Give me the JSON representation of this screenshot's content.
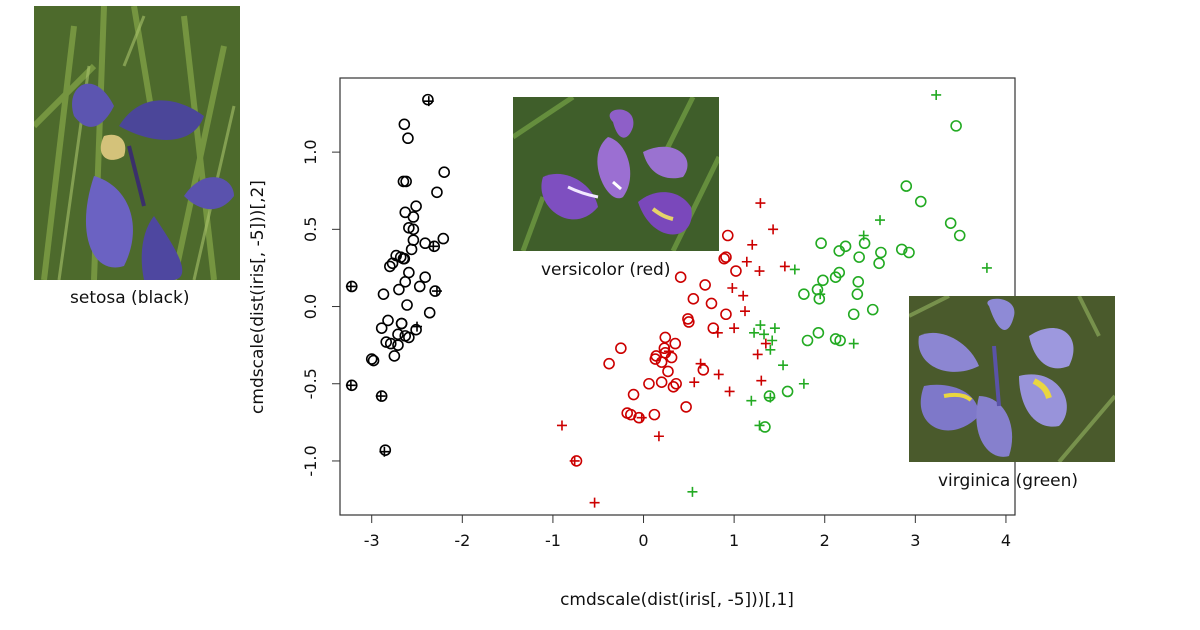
{
  "chart_data": {
    "type": "scatter",
    "title": "",
    "xlabel": "cmdscale(dist(iris[, -5]))[,1]",
    "ylabel": "cmdscale(dist(iris[, -5]))[,2]",
    "xlim": [
      -3.35,
      4.1
    ],
    "ylim": [
      -1.35,
      1.48
    ],
    "xticks": [
      -3,
      -2,
      -1,
      0,
      1,
      2,
      3,
      4
    ],
    "yticks": [
      -1.0,
      -0.5,
      0.0,
      0.5,
      1.0
    ],
    "ytick_labels": [
      "-1.0",
      "-0.5",
      "0.0",
      "0.5",
      "1.0"
    ],
    "series": [
      {
        "name": "setosa",
        "color": "#000000",
        "circles": [
          [
            -2.68,
            0.32
          ],
          [
            -2.71,
            -0.18
          ],
          [
            -2.89,
            -0.14
          ],
          [
            -2.75,
            -0.32
          ],
          [
            -2.73,
            0.33
          ],
          [
            -2.28,
            0.74
          ],
          [
            -2.82,
            -0.09
          ],
          [
            -2.63,
            0.16
          ],
          [
            -2.89,
            -0.58
          ],
          [
            -2.67,
            -0.11
          ],
          [
            -2.51,
            0.65
          ],
          [
            -2.61,
            0.01
          ],
          [
            -2.79,
            -0.24
          ],
          [
            -3.22,
            -0.51
          ],
          [
            -2.64,
            1.18
          ],
          [
            -2.38,
            1.34
          ],
          [
            -2.62,
            0.81
          ],
          [
            -2.65,
            0.31
          ],
          [
            -2.2,
            0.87
          ],
          [
            -2.59,
            0.51
          ],
          [
            -2.31,
            0.39
          ],
          [
            -2.54,
            0.43
          ],
          [
            -3.22,
            0.13
          ],
          [
            -2.3,
            0.1
          ],
          [
            -2.36,
            -0.04
          ],
          [
            -2.51,
            -0.15
          ],
          [
            -2.47,
            0.13
          ],
          [
            -2.56,
            0.37
          ],
          [
            -2.64,
            0.31
          ],
          [
            -2.63,
            -0.19
          ],
          [
            -2.59,
            -0.2
          ],
          [
            -2.41,
            0.41
          ],
          [
            -2.65,
            0.81
          ],
          [
            -2.6,
            1.09
          ],
          [
            -2.67,
            -0.11
          ],
          [
            -2.87,
            0.08
          ],
          [
            -2.63,
            0.61
          ],
          [
            -2.8,
            0.26
          ],
          [
            -2.98,
            -0.35
          ],
          [
            -2.59,
            0.22
          ],
          [
            -2.77,
            0.28
          ],
          [
            -2.85,
            -0.93
          ],
          [
            -3.0,
            -0.34
          ],
          [
            -2.41,
            0.19
          ],
          [
            -2.21,
            0.44
          ],
          [
            -2.71,
            -0.25
          ],
          [
            -2.54,
            0.5
          ],
          [
            -2.84,
            -0.23
          ],
          [
            -2.54,
            0.58
          ],
          [
            -2.7,
            0.11
          ]
        ],
        "crosses": [
          [
            -2.37,
            1.33
          ],
          [
            -3.23,
            0.13
          ],
          [
            -3.23,
            -0.51
          ],
          [
            -2.9,
            -0.58
          ],
          [
            -2.86,
            -0.94
          ],
          [
            -2.28,
            0.1
          ],
          [
            -2.5,
            -0.13
          ],
          [
            -2.32,
            0.39
          ]
        ]
      },
      {
        "name": "versicolor",
        "color": "#cc0000",
        "circles": [
          [
            0.93,
            0.46
          ],
          [
            0.89,
            0.31
          ],
          [
            0.91,
            -0.05
          ],
          [
            0.49,
            -0.08
          ],
          [
            0.77,
            -0.14
          ],
          [
            0.75,
            0.02
          ],
          [
            0.35,
            -0.24
          ],
          [
            0.23,
            -0.27
          ],
          [
            0.36,
            -0.5
          ],
          [
            0.31,
            -0.33
          ],
          [
            0.14,
            -0.32
          ],
          [
            0.06,
            -0.5
          ],
          [
            -0.11,
            -0.57
          ],
          [
            0.27,
            -0.42
          ],
          [
            -0.38,
            -0.37
          ],
          [
            -0.25,
            -0.27
          ],
          [
            0.41,
            0.19
          ],
          [
            1.02,
            0.23
          ],
          [
            0.68,
            0.14
          ],
          [
            0.55,
            0.05
          ],
          [
            -0.74,
            -1.0
          ],
          [
            0.33,
            -0.52
          ],
          [
            0.66,
            -0.41
          ],
          [
            0.24,
            -0.3
          ],
          [
            0.13,
            -0.34
          ],
          [
            0.2,
            -0.49
          ],
          [
            -0.14,
            -0.7
          ],
          [
            0.2,
            -0.36
          ],
          [
            0.47,
            -0.65
          ],
          [
            -0.05,
            -0.72
          ],
          [
            0.12,
            -0.7
          ],
          [
            0.91,
            0.32
          ],
          [
            -0.18,
            -0.69
          ],
          [
            0.5,
            -0.1
          ],
          [
            0.24,
            -0.2
          ]
        ],
        "crosses": [
          [
            1.29,
            0.67
          ],
          [
            1.2,
            0.4
          ],
          [
            1.43,
            0.5
          ],
          [
            1.28,
            0.23
          ],
          [
            1.56,
            0.26
          ],
          [
            1.14,
            0.29
          ],
          [
            0.98,
            0.12
          ],
          [
            1.1,
            0.07
          ],
          [
            1.12,
            -0.03
          ],
          [
            1.0,
            -0.14
          ],
          [
            0.82,
            -0.17
          ],
          [
            1.35,
            -0.24
          ],
          [
            1.26,
            -0.31
          ],
          [
            1.3,
            -0.48
          ],
          [
            0.63,
            -0.37
          ],
          [
            0.83,
            -0.44
          ],
          [
            0.95,
            -0.55
          ],
          [
            0.56,
            -0.49
          ],
          [
            0.28,
            -0.29
          ],
          [
            0.17,
            -0.84
          ],
          [
            -0.9,
            -0.77
          ],
          [
            -0.54,
            -1.27
          ],
          [
            -0.76,
            -1.0
          ],
          [
            -0.02,
            -0.72
          ]
        ]
      },
      {
        "name": "virginica",
        "color": "#22aa22",
        "circles": [
          [
            3.45,
            1.17
          ],
          [
            2.9,
            0.78
          ],
          [
            3.06,
            0.68
          ],
          [
            3.49,
            0.46
          ],
          [
            3.39,
            0.54
          ],
          [
            2.93,
            0.35
          ],
          [
            2.85,
            0.37
          ],
          [
            2.44,
            0.41
          ],
          [
            2.38,
            0.32
          ],
          [
            2.23,
            0.39
          ],
          [
            2.16,
            0.22
          ],
          [
            2.62,
            0.35
          ],
          [
            2.6,
            0.28
          ],
          [
            2.37,
            0.16
          ],
          [
            2.16,
            0.36
          ],
          [
            1.96,
            0.41
          ],
          [
            1.98,
            0.17
          ],
          [
            2.12,
            0.19
          ],
          [
            2.36,
            0.08
          ],
          [
            2.53,
            -0.02
          ],
          [
            2.32,
            -0.05
          ],
          [
            1.92,
            0.11
          ],
          [
            1.94,
            0.05
          ],
          [
            1.77,
            0.08
          ],
          [
            1.93,
            -0.17
          ],
          [
            2.17,
            -0.22
          ],
          [
            1.81,
            -0.22
          ],
          [
            1.59,
            -0.55
          ],
          [
            1.39,
            -0.58
          ],
          [
            1.34,
            -0.78
          ],
          [
            2.12,
            -0.21
          ]
        ],
        "crosses": [
          [
            3.23,
            1.37
          ],
          [
            3.79,
            0.25
          ],
          [
            2.61,
            0.56
          ],
          [
            2.43,
            0.46
          ],
          [
            1.67,
            0.24
          ],
          [
            1.95,
            0.08
          ],
          [
            1.29,
            -0.12
          ],
          [
            1.45,
            -0.14
          ],
          [
            1.33,
            -0.18
          ],
          [
            1.22,
            -0.17
          ],
          [
            1.4,
            -0.28
          ],
          [
            1.54,
            -0.38
          ],
          [
            1.77,
            -0.5
          ],
          [
            1.19,
            -0.61
          ],
          [
            1.28,
            -0.77
          ],
          [
            1.4,
            -0.59
          ],
          [
            0.54,
            -1.2
          ],
          [
            2.32,
            -0.24
          ],
          [
            1.42,
            -0.22
          ]
        ]
      }
    ]
  },
  "photos": [
    {
      "name": "setosa",
      "caption": "setosa (black)"
    },
    {
      "name": "versicolor",
      "caption": "versicolor (red)"
    },
    {
      "name": "virginica",
      "caption": "virginica (green)"
    }
  ]
}
